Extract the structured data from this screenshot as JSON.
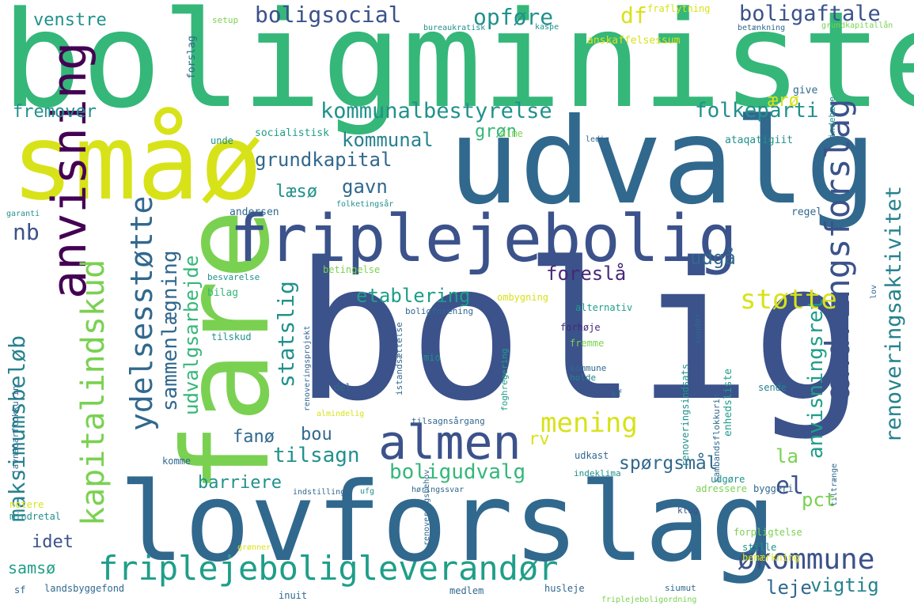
{
  "palette": {
    "green": "#35b779",
    "lime": "#7ad151",
    "yellow": "#d8e219",
    "teal": "#21918c",
    "blue": "#31688e",
    "indigo": "#3b528b",
    "purple": "#440154",
    "violet": "#482878",
    "aqua": "#1f9e89",
    "sea": "#26828e"
  },
  "words": [
    {
      "t": "boligminister"
    },
    {
      "t": "bolig"
    },
    {
      "t": "lovforslag"
    },
    {
      "t": "udvalg"
    },
    {
      "t": "fare"
    },
    {
      "t": "småø"
    },
    {
      "t": "friplejebolig"
    },
    {
      "t": "anvisning"
    },
    {
      "t": "almen"
    },
    {
      "t": "ændringsforslag"
    },
    {
      "t": "friplejeboligleverandør"
    },
    {
      "t": "økommune"
    },
    {
      "t": "kapitalindskud"
    },
    {
      "t": "ydelsesstøtte"
    },
    {
      "t": "maksimumsbeløb"
    },
    {
      "t": "renoveringsaktivitet"
    },
    {
      "t": "anvisningsret"
    },
    {
      "t": "kommunalbestyrelse"
    },
    {
      "t": "boligsocial"
    },
    {
      "t": "opføre"
    },
    {
      "t": "boligaftale"
    },
    {
      "t": "venstre"
    },
    {
      "t": "df"
    },
    {
      "t": "fremover"
    },
    {
      "t": "folkeparti"
    },
    {
      "t": "kommunal"
    },
    {
      "t": "grundkapital"
    },
    {
      "t": "grøn"
    },
    {
      "t": "ærø"
    },
    {
      "t": "støtte"
    },
    {
      "t": "mening"
    },
    {
      "t": "statslig"
    },
    {
      "t": "sammenlægning"
    },
    {
      "t": "udvalgsarbejde"
    },
    {
      "t": "etablering"
    },
    {
      "t": "foreslå"
    },
    {
      "t": "udgå"
    },
    {
      "t": "gavn"
    },
    {
      "t": "læsø"
    },
    {
      "t": "nb"
    },
    {
      "t": "tilsagn"
    },
    {
      "t": "boligudvalg"
    },
    {
      "t": "spørgsmål"
    },
    {
      "t": "barriere"
    },
    {
      "t": "bou"
    },
    {
      "t": "fanø"
    },
    {
      "t": "idet"
    },
    {
      "t": "samsø"
    },
    {
      "t": "pct"
    },
    {
      "t": "el"
    },
    {
      "t": "la"
    },
    {
      "t": "leje"
    },
    {
      "t": "vigtig"
    },
    {
      "t": "rv"
    },
    {
      "t": "andersen"
    },
    {
      "t": "socialistisk"
    },
    {
      "t": "fraflytning"
    },
    {
      "t": "anskaffelsessum"
    },
    {
      "t": "ataqatigiit"
    },
    {
      "t": "regel"
    },
    {
      "t": "give"
    },
    {
      "t": "indebære"
    },
    {
      "t": "sunder"
    },
    {
      "t": "alme"
    },
    {
      "t": "unde"
    },
    {
      "t": "forslag"
    },
    {
      "t": "setup"
    },
    {
      "t": "bureaukratisk"
    },
    {
      "t": "kaspe"
    },
    {
      "t": "betænkning"
    },
    {
      "t": "grundkapitallån"
    },
    {
      "t": "ledig"
    },
    {
      "t": "garanti"
    },
    {
      "t": "folketingsår"
    },
    {
      "t": "bilag"
    },
    {
      "t": "betingelse"
    },
    {
      "t": "besvarelse"
    },
    {
      "t": "ombygning"
    },
    {
      "t": "boligforening"
    },
    {
      "t": "alternativ"
    },
    {
      "t": "forhøje"
    },
    {
      "t": "fremme"
    },
    {
      "t": "tilskud"
    },
    {
      "t": "kommune"
    },
    {
      "t": "holde"
    },
    {
      "t": "kf"
    },
    {
      "t": "mio"
    },
    {
      "t": "del"
    },
    {
      "t": "enhedsliste"
    },
    {
      "t": "renoveringsindsats"
    },
    {
      "t": "sende"
    },
    {
      "t": "sambandsflokkurin"
    },
    {
      "t": "udkast"
    },
    {
      "t": "indeklima"
    },
    {
      "t": "udgøre"
    },
    {
      "t": "adressere"
    },
    {
      "t": "byggeri"
    },
    {
      "t": "klog"
    },
    {
      "t": "forpligtelse"
    },
    {
      "t": "bemærkning"
    },
    {
      "t": "stille"
    },
    {
      "t": "høringssvar"
    },
    {
      "t": "indstilling"
    },
    {
      "t": "ufg"
    },
    {
      "t": "komme"
    },
    {
      "t": "notere"
    },
    {
      "t": "mindretal"
    },
    {
      "t": "sf"
    },
    {
      "t": "landsbyggefond"
    },
    {
      "t": "inuit"
    },
    {
      "t": "medlem"
    },
    {
      "t": "husleje"
    },
    {
      "t": "siumut"
    },
    {
      "t": "friplejeboligordning"
    },
    {
      "t": "javnaðarflokkurin"
    },
    {
      "t": "istandsættelse"
    },
    {
      "t": "renoveringsprojekt"
    },
    {
      "t": "foghregering"
    },
    {
      "t": "tilsagnsårgang"
    },
    {
      "t": "almindelig"
    },
    {
      "t": "grønner"
    },
    {
      "t": "tiltrænge"
    },
    {
      "t": "renoveringsbehov"
    },
    {
      "t": "lov"
    }
  ]
}
